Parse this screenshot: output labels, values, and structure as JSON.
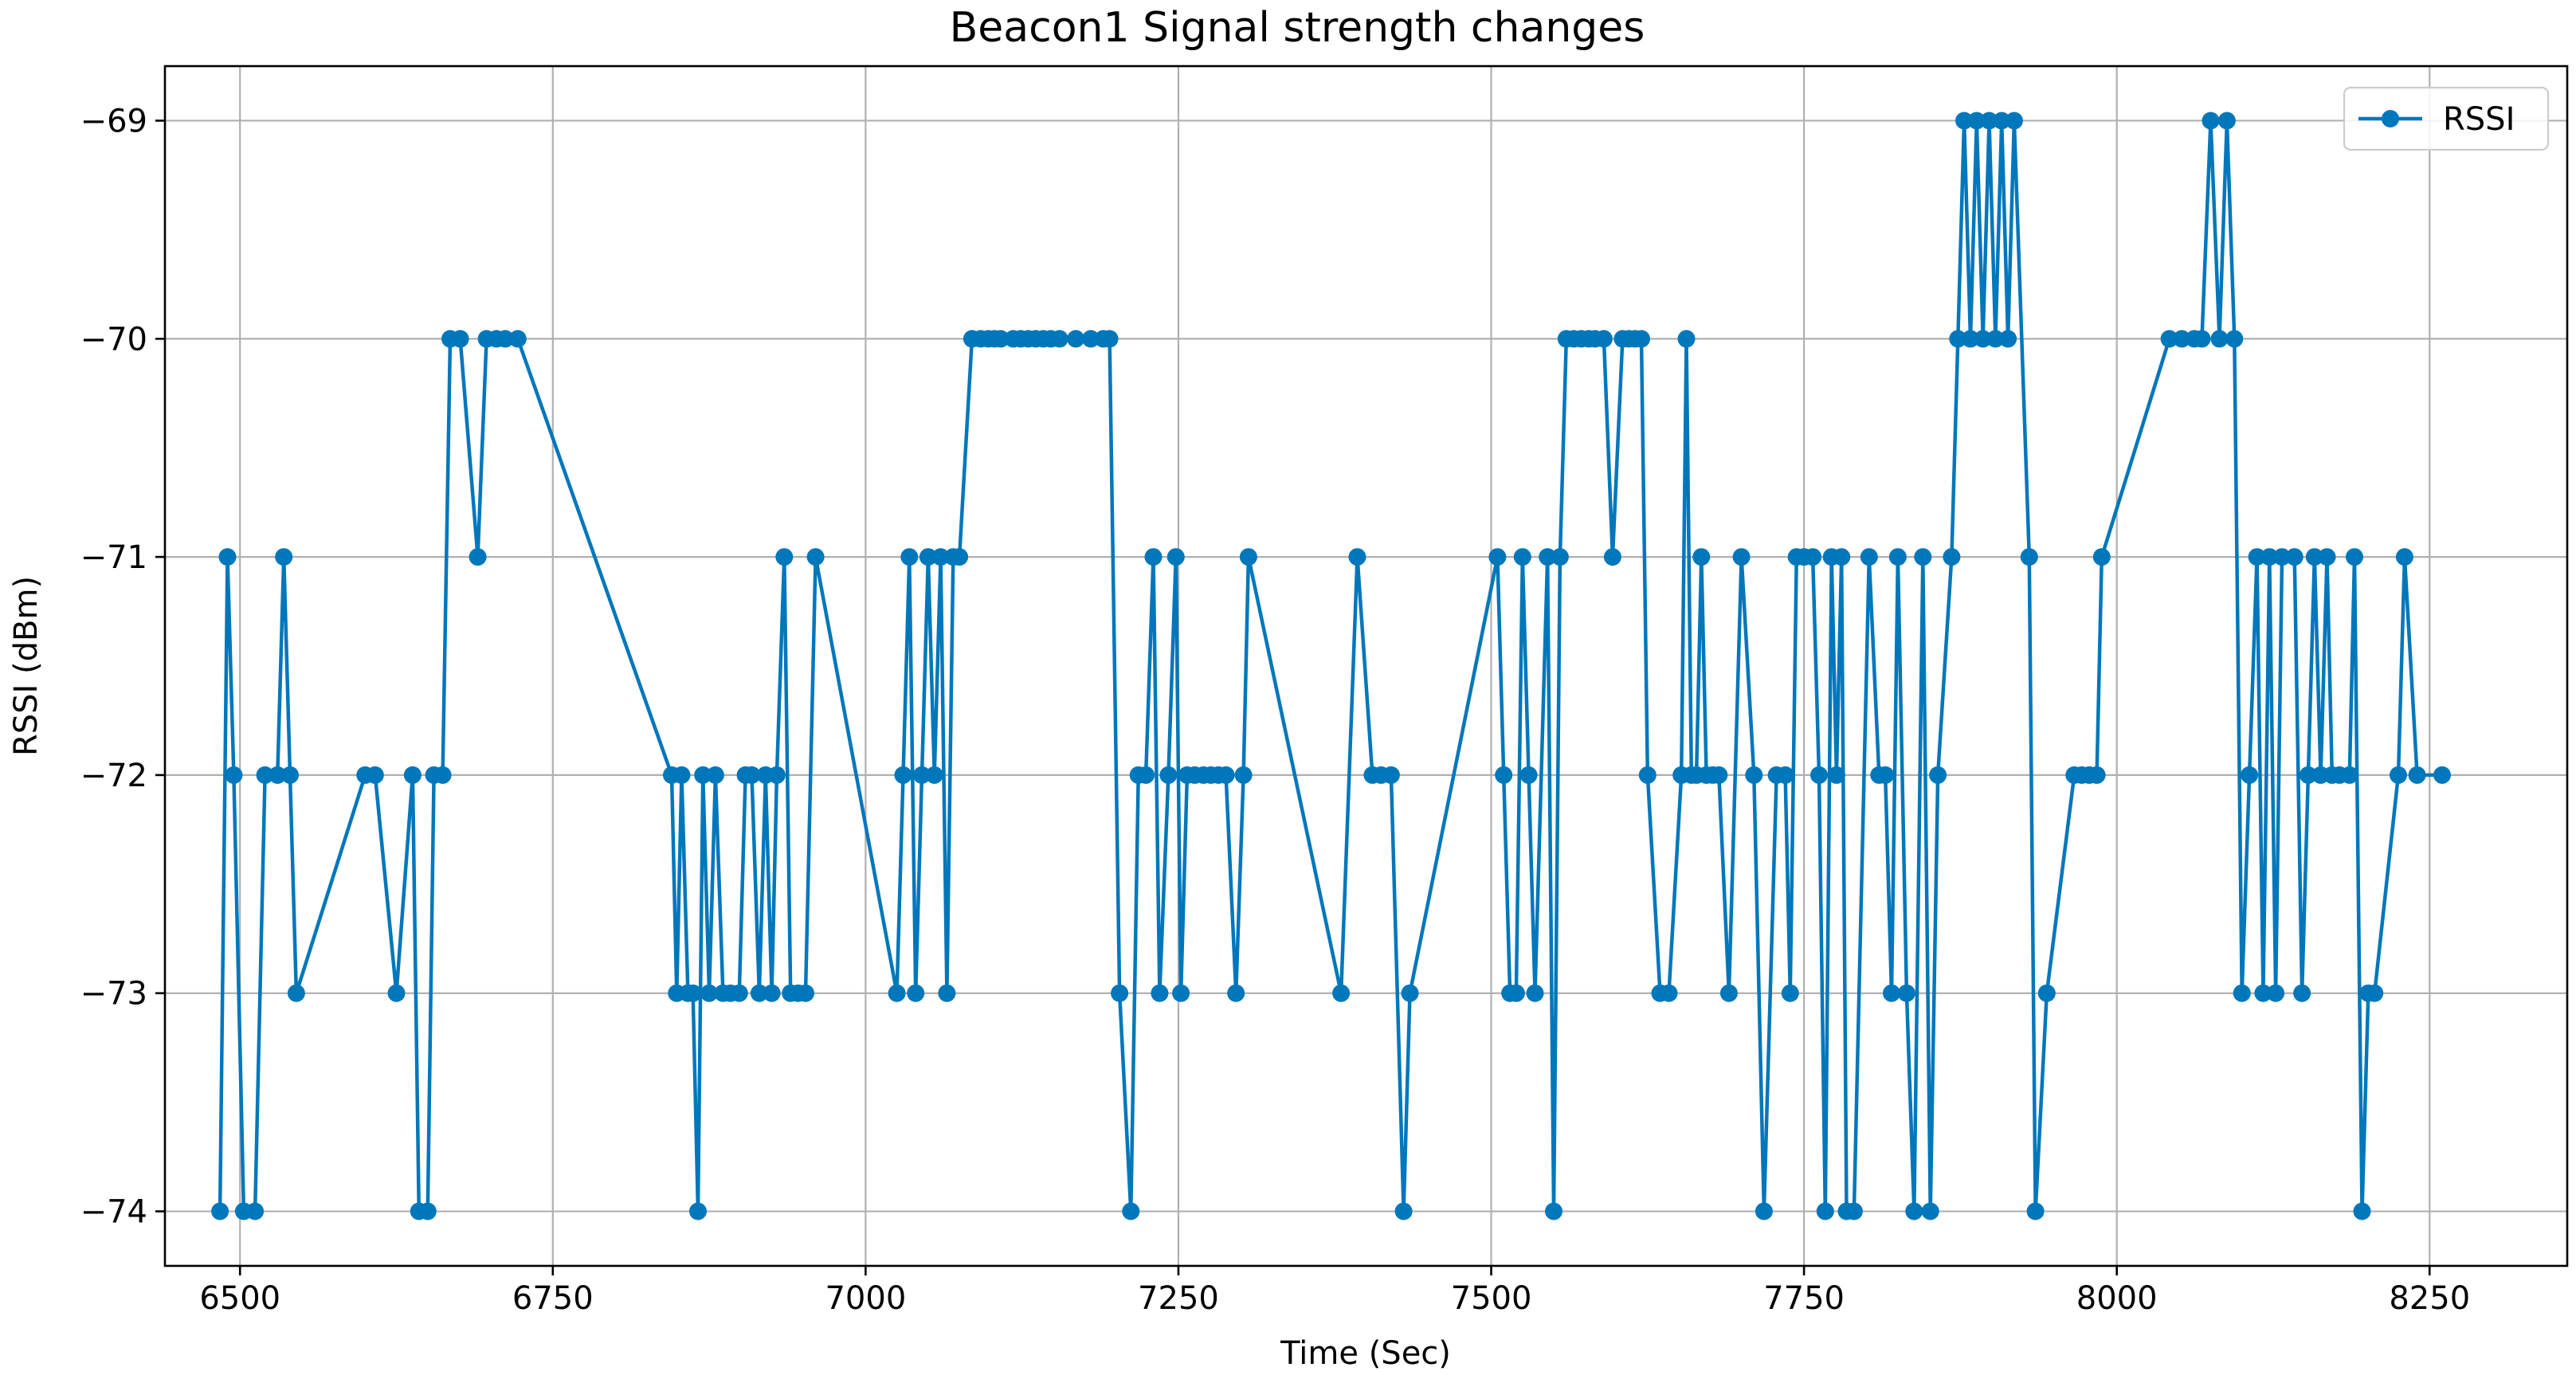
{
  "chart_data": {
    "type": "line",
    "title": "Beacon1 Signal strength changes",
    "xlabel": "Time (Sec)",
    "ylabel": "RSSI (dBm)",
    "xlim": [
      6440,
      8360
    ],
    "ylim": [
      -74.25,
      -68.75
    ],
    "xticks": [
      6500,
      6750,
      7000,
      7250,
      7500,
      7750,
      8000,
      8250
    ],
    "xtick_labels": [
      "6500",
      "6750",
      "7000",
      "7250",
      "7500",
      "7750",
      "8000",
      "8250"
    ],
    "yticks": [
      -74,
      -73,
      -72,
      -71,
      -70,
      -69
    ],
    "ytick_labels": [
      "−74",
      "−73",
      "−72",
      "−71",
      "−70",
      "−69"
    ],
    "grid": true,
    "legend_position": "top-right",
    "colors": {
      "series": "#0077BB"
    },
    "series": [
      {
        "name": "RSSI",
        "marker": "circle",
        "x": [
          6484,
          6490,
          6495,
          6503,
          6512,
          6520,
          6530,
          6535,
          6540,
          6545,
          6600,
          6608,
          6625,
          6638,
          6643,
          6650,
          6655,
          6662,
          6668,
          6676,
          6690,
          6697,
          6705,
          6712,
          6722,
          6845,
          6849,
          6853,
          6858,
          6862,
          6866,
          6870,
          6875,
          6880,
          6886,
          6892,
          6899,
          6904,
          6909,
          6915,
          6920,
          6925,
          6929,
          6935,
          6940,
          6946,
          6952,
          6960,
          7025,
          7030,
          7035,
          7040,
          7045,
          7050,
          7055,
          7060,
          7065,
          7070,
          7075,
          7085,
          7092,
          7098,
          7103,
          7108,
          7118,
          7124,
          7130,
          7136,
          7142,
          7148,
          7155,
          7168,
          7180,
          7190,
          7195,
          7203,
          7212,
          7218,
          7224,
          7230,
          7235,
          7242,
          7248,
          7252,
          7257,
          7263,
          7270,
          7276,
          7282,
          7288,
          7296,
          7302,
          7306,
          7380,
          7393,
          7405,
          7412,
          7420,
          7430,
          7435,
          7505,
          7510,
          7515,
          7520,
          7525,
          7530,
          7535,
          7545,
          7550,
          7555,
          7560,
          7566,
          7572,
          7578,
          7583,
          7590,
          7597,
          7605,
          7610,
          7615,
          7620,
          7625,
          7635,
          7642,
          7652,
          7656,
          7660,
          7664,
          7668,
          7672,
          7677,
          7682,
          7690,
          7700,
          7710,
          7718,
          7728,
          7735,
          7739,
          7744,
          7750,
          7757,
          7762,
          7767,
          7772,
          7776,
          7780,
          7784,
          7790,
          7802,
          7810,
          7815,
          7820,
          7825,
          7832,
          7838,
          7845,
          7851,
          7857,
          7868,
          7873,
          7878,
          7883,
          7888,
          7893,
          7898,
          7903,
          7908,
          7913,
          7918,
          7930,
          7935,
          7944,
          7966,
          7972,
          7978,
          7984,
          7988,
          8042,
          8052,
          8062,
          8068,
          8075,
          8082,
          8088,
          8094,
          8100,
          8106,
          8112,
          8117,
          8122,
          8127,
          8132,
          8142,
          8148,
          8153,
          8158,
          8163,
          8168,
          8172,
          8178,
          8186,
          8190,
          8196,
          8201,
          8206,
          8225,
          8230,
          8240,
          8260
        ],
        "y": [
          -74,
          -71,
          -72,
          -74,
          -74,
          -72,
          -72,
          -71,
          -72,
          -73,
          -72,
          -72,
          -73,
          -72,
          -74,
          -74,
          -72,
          -72,
          -70,
          -70,
          -71,
          -70,
          -70,
          -70,
          -70,
          -72,
          -73,
          -72,
          -73,
          -73,
          -74,
          -72,
          -73,
          -72,
          -73,
          -73,
          -73,
          -72,
          -72,
          -73,
          -72,
          -73,
          -72,
          -71,
          -73,
          -73,
          -73,
          -71,
          -73,
          -72,
          -71,
          -73,
          -72,
          -71,
          -72,
          -71,
          -73,
          -71,
          -71,
          -70,
          -70,
          -70,
          -70,
          -70,
          -70,
          -70,
          -70,
          -70,
          -70,
          -70,
          -70,
          -70,
          -70,
          -70,
          -70,
          -73,
          -74,
          -72,
          -72,
          -71,
          -73,
          -72,
          -71,
          -73,
          -72,
          -72,
          -72,
          -72,
          -72,
          -72,
          -73,
          -72,
          -71,
          -73,
          -71,
          -72,
          -72,
          -72,
          -74,
          -73,
          -71,
          -72,
          -73,
          -73,
          -71,
          -72,
          -73,
          -71,
          -74,
          -71,
          -70,
          -70,
          -70,
          -70,
          -70,
          -70,
          -71,
          -70,
          -70,
          -70,
          -70,
          -72,
          -73,
          -73,
          -72,
          -70,
          -72,
          -72,
          -71,
          -72,
          -72,
          -72,
          -73,
          -71,
          -72,
          -74,
          -72,
          -72,
          -73,
          -71,
          -71,
          -71,
          -72,
          -74,
          -71,
          -72,
          -71,
          -74,
          -74,
          -71,
          -72,
          -72,
          -73,
          -71,
          -73,
          -74,
          -71,
          -74,
          -72,
          -71,
          -70,
          -69,
          -70,
          -69,
          -70,
          -69,
          -70,
          -69,
          -70,
          -69,
          -71,
          -74,
          -73,
          -72,
          -72,
          -72,
          -72,
          -71,
          -70,
          -70,
          -70,
          -70,
          -69,
          -70,
          -69,
          -70,
          -73,
          -72,
          -71,
          -73,
          -71,
          -73,
          -71,
          -71,
          -73,
          -72,
          -71,
          -72,
          -71,
          -72,
          -72,
          -72,
          -71,
          -74,
          -73,
          -73,
          -72,
          -71,
          -72,
          -72
        ]
      }
    ]
  }
}
